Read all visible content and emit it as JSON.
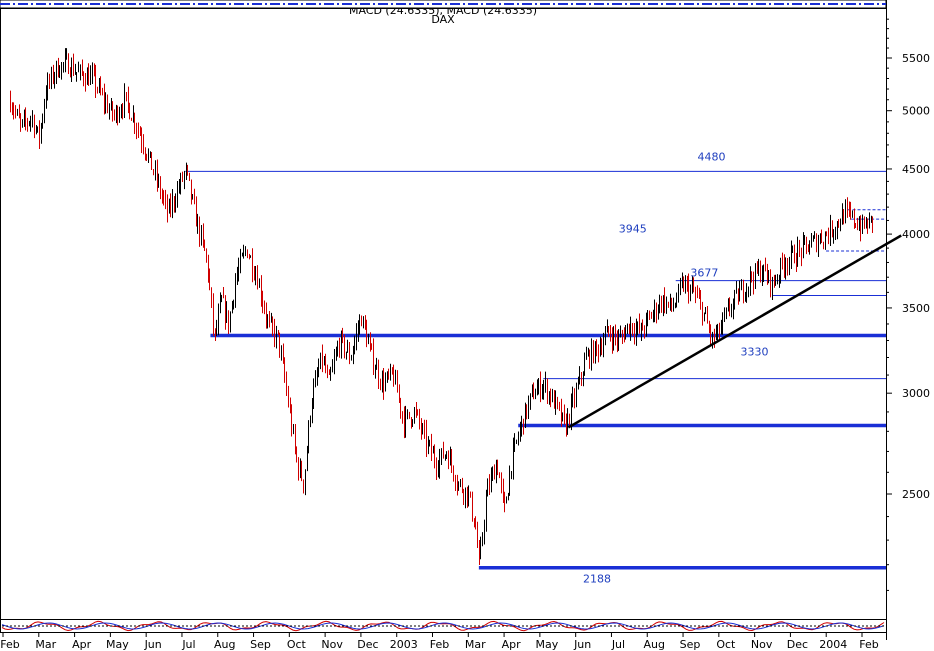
{
  "header": {
    "indicator_title": "MACD (24.6335), MACD (24.6335)",
    "instrument": "DAX"
  },
  "colors": {
    "up_candle": "#000000",
    "down_candle": "#d00000",
    "support_resistance": "#1a2fd6",
    "thin_level": "#1a2fd6",
    "trendline": "#000000",
    "level_label": "#1f3fbf"
  },
  "chart_data": {
    "type": "line",
    "chart_style": "candlestick",
    "y_scale": "log",
    "ylim": [
      2050,
      6000
    ],
    "y_ticks": [
      2500,
      3000,
      3500,
      4000,
      4500,
      5000,
      5500
    ],
    "grid": false,
    "x_tick_labels": [
      "Feb",
      "Mar",
      "Apr",
      "May",
      "Jun",
      "Jul",
      "Aug",
      "Sep",
      "Oct",
      "Nov",
      "Dec",
      "2003",
      "Feb",
      "Mar",
      "Apr",
      "May",
      "Jun",
      "Jul",
      "Aug",
      "Sep",
      "Oct",
      "Nov",
      "Dec",
      "2004",
      "Feb"
    ],
    "x_tick_months": [
      0,
      1,
      2,
      3,
      4,
      5,
      6,
      7,
      8,
      9,
      10,
      11,
      12,
      13,
      14,
      15,
      16,
      17,
      18,
      19,
      20,
      21,
      22,
      23,
      24
    ],
    "x_range_months": [
      0,
      25.5
    ],
    "price_path": [
      {
        "m": 0.0,
        "v": 5100
      },
      {
        "m": 0.3,
        "v": 4850
      },
      {
        "m": 0.6,
        "v": 4950
      },
      {
        "m": 0.8,
        "v": 4750
      },
      {
        "m": 1.0,
        "v": 5200
      },
      {
        "m": 1.3,
        "v": 5400
      },
      {
        "m": 1.6,
        "v": 5450
      },
      {
        "m": 1.9,
        "v": 5350
      },
      {
        "m": 2.3,
        "v": 5300
      },
      {
        "m": 2.6,
        "v": 5100
      },
      {
        "m": 2.9,
        "v": 4950
      },
      {
        "m": 3.2,
        "v": 5100
      },
      {
        "m": 3.5,
        "v": 4900
      },
      {
        "m": 3.8,
        "v": 4650
      },
      {
        "m": 4.1,
        "v": 4400
      },
      {
        "m": 4.4,
        "v": 4150
      },
      {
        "m": 4.7,
        "v": 4350
      },
      {
        "m": 4.9,
        "v": 4480
      },
      {
        "m": 5.2,
        "v": 4100
      },
      {
        "m": 5.5,
        "v": 3800
      },
      {
        "m": 5.7,
        "v": 3300
      },
      {
        "m": 5.9,
        "v": 3550
      },
      {
        "m": 6.1,
        "v": 3400
      },
      {
        "m": 6.3,
        "v": 3700
      },
      {
        "m": 6.6,
        "v": 3900
      },
      {
        "m": 6.9,
        "v": 3700
      },
      {
        "m": 7.2,
        "v": 3400
      },
      {
        "m": 7.5,
        "v": 3300
      },
      {
        "m": 7.8,
        "v": 2900
      },
      {
        "m": 8.0,
        "v": 2650
      },
      {
        "m": 8.2,
        "v": 2550
      },
      {
        "m": 8.4,
        "v": 2950
      },
      {
        "m": 8.7,
        "v": 3200
      },
      {
        "m": 8.9,
        "v": 3050
      },
      {
        "m": 9.2,
        "v": 3300
      },
      {
        "m": 9.5,
        "v": 3200
      },
      {
        "m": 9.8,
        "v": 3450
      },
      {
        "m": 10.1,
        "v": 3200
      },
      {
        "m": 10.4,
        "v": 3050
      },
      {
        "m": 10.7,
        "v": 3100
      },
      {
        "m": 11.0,
        "v": 2850
      },
      {
        "m": 11.3,
        "v": 2900
      },
      {
        "m": 11.6,
        "v": 2750
      },
      {
        "m": 11.9,
        "v": 2650
      },
      {
        "m": 12.2,
        "v": 2700
      },
      {
        "m": 12.5,
        "v": 2550
      },
      {
        "m": 12.8,
        "v": 2500
      },
      {
        "m": 13.0,
        "v": 2350
      },
      {
        "m": 13.1,
        "v": 2188
      },
      {
        "m": 13.3,
        "v": 2500
      },
      {
        "m": 13.6,
        "v": 2650
      },
      {
        "m": 13.8,
        "v": 2420
      },
      {
        "m": 14.0,
        "v": 2650
      },
      {
        "m": 14.3,
        "v": 2850
      },
      {
        "m": 14.6,
        "v": 3000
      },
      {
        "m": 14.9,
        "v": 3050
      },
      {
        "m": 15.2,
        "v": 2950
      },
      {
        "m": 15.5,
        "v": 2820
      },
      {
        "m": 15.8,
        "v": 3000
      },
      {
        "m": 16.1,
        "v": 3200
      },
      {
        "m": 16.4,
        "v": 3250
      },
      {
        "m": 16.7,
        "v": 3350
      },
      {
        "m": 17.0,
        "v": 3300
      },
      {
        "m": 17.3,
        "v": 3400
      },
      {
        "m": 17.6,
        "v": 3350
      },
      {
        "m": 17.9,
        "v": 3450
      },
      {
        "m": 18.2,
        "v": 3550
      },
      {
        "m": 18.5,
        "v": 3500
      },
      {
        "m": 18.8,
        "v": 3650
      },
      {
        "m": 19.1,
        "v": 3600
      },
      {
        "m": 19.4,
        "v": 3450
      },
      {
        "m": 19.6,
        "v": 3300
      },
      {
        "m": 19.8,
        "v": 3350
      },
      {
        "m": 20.1,
        "v": 3500
      },
      {
        "m": 20.4,
        "v": 3600
      },
      {
        "m": 20.7,
        "v": 3700
      },
      {
        "m": 21.0,
        "v": 3750
      },
      {
        "m": 21.3,
        "v": 3650
      },
      {
        "m": 21.6,
        "v": 3800
      },
      {
        "m": 21.9,
        "v": 3850
      },
      {
        "m": 22.2,
        "v": 3900
      },
      {
        "m": 22.5,
        "v": 3950
      },
      {
        "m": 22.8,
        "v": 4000
      },
      {
        "m": 23.0,
        "v": 4050
      },
      {
        "m": 23.3,
        "v": 4150
      },
      {
        "m": 23.6,
        "v": 4100
      },
      {
        "m": 23.8,
        "v": 4050
      },
      {
        "m": 24.1,
        "v": 4100
      }
    ],
    "horizontal_levels": [
      {
        "value": 4480,
        "start_m": 4.9,
        "weight": "thin",
        "label": "4480"
      },
      {
        "value": 3677,
        "start_m": 18.6,
        "weight": "thin",
        "label": "3677"
      },
      {
        "value": 3580,
        "start_m": 21.3,
        "weight": "thin",
        "label": ""
      },
      {
        "value": 3330,
        "start_m": 5.6,
        "weight": "thick",
        "label": "3330"
      },
      {
        "value": 3080,
        "start_m": 14.9,
        "weight": "thin",
        "label": ""
      },
      {
        "value": 2830,
        "start_m": 14.2,
        "weight": "thick",
        "label": ""
      },
      {
        "value": 2188,
        "start_m": 13.1,
        "weight": "thick",
        "label": "2188"
      },
      {
        "value": 4180,
        "start_m": 23.4,
        "weight": "dashed",
        "label": ""
      },
      {
        "value": 4110,
        "start_m": 23.5,
        "weight": "dashed",
        "label": ""
      },
      {
        "value": 3880,
        "start_m": 22.8,
        "weight": "dashed",
        "label": ""
      }
    ],
    "annotations": [
      {
        "text": "3945",
        "m": 17.4,
        "v": 4010
      }
    ],
    "trendline": {
      "start": {
        "m": 15.6,
        "v": 2820
      },
      "end": {
        "m": 24.9,
        "v": 3990
      }
    }
  }
}
